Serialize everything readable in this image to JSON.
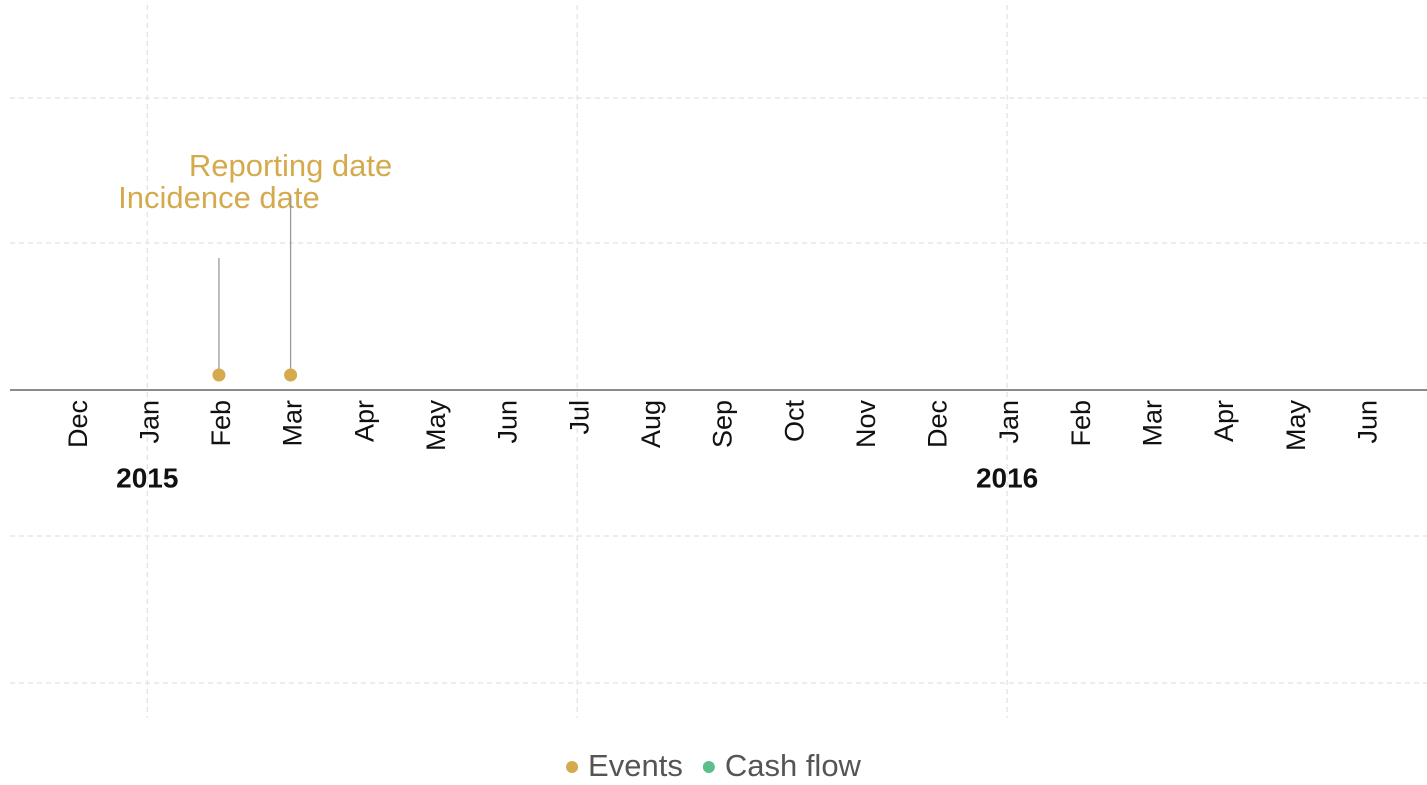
{
  "chart_data": {
    "type": "timeline",
    "xlim": [
      "2014-11",
      "2016-07"
    ],
    "xticks": [
      {
        "value": "2014-12",
        "label": "Dec"
      },
      {
        "value": "2015-01",
        "label": "Jan"
      },
      {
        "value": "2015-02",
        "label": "Feb"
      },
      {
        "value": "2015-03",
        "label": "Mar"
      },
      {
        "value": "2015-04",
        "label": "Apr"
      },
      {
        "value": "2015-05",
        "label": "May"
      },
      {
        "value": "2015-06",
        "label": "Jun"
      },
      {
        "value": "2015-07",
        "label": "Jul"
      },
      {
        "value": "2015-08",
        "label": "Aug"
      },
      {
        "value": "2015-09",
        "label": "Sep"
      },
      {
        "value": "2015-10",
        "label": "Oct"
      },
      {
        "value": "2015-11",
        "label": "Nov"
      },
      {
        "value": "2015-12",
        "label": "Dec"
      },
      {
        "value": "2016-01",
        "label": "Jan"
      },
      {
        "value": "2016-02",
        "label": "Feb"
      },
      {
        "value": "2016-03",
        "label": "Mar"
      },
      {
        "value": "2016-04",
        "label": "Apr"
      },
      {
        "value": "2016-05",
        "label": "May"
      },
      {
        "value": "2016-06",
        "label": "Jun"
      }
    ],
    "year_ticks": [
      {
        "value": "2015-01",
        "label": "2015"
      },
      {
        "value": "2016-01",
        "label": "2016"
      }
    ],
    "xgrid": [
      "2015-01",
      "2015-07",
      "2016-01"
    ],
    "grid": true,
    "legend": "bottom",
    "series": [
      {
        "name": "Events",
        "color": "#d4aa4c",
        "x": [
          "2015-02",
          "2015-03"
        ],
        "labels": [
          "Incidence date",
          "Reporting date"
        ]
      },
      {
        "name": "Cash flow",
        "color": "#5cbf8a",
        "x": [],
        "labels": []
      }
    ]
  }
}
